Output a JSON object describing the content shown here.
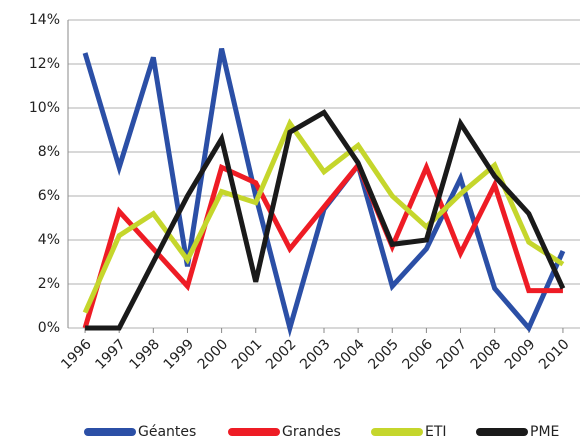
{
  "chart_data": {
    "type": "line",
    "categories": [
      "1996",
      "1997",
      "1998",
      "1999",
      "2000",
      "2001",
      "2002",
      "2003",
      "2004",
      "2005",
      "2006",
      "2007",
      "2008",
      "2009",
      "2010"
    ],
    "series": [
      {
        "name": "Géantes",
        "color": "#2b4fa6",
        "values": [
          12.5,
          7.3,
          12.3,
          2.8,
          12.7,
          6.0,
          0,
          5.4,
          7.4,
          1.9,
          3.6,
          6.8,
          1.8,
          0,
          3.5
        ]
      },
      {
        "name": "Grandes",
        "color": "#ee1c25",
        "values": [
          0,
          5.3,
          3.6,
          1.9,
          7.3,
          6.6,
          3.6,
          5.5,
          7.4,
          3.7,
          7.3,
          3.4,
          6.5,
          1.7,
          1.7
        ]
      },
      {
        "name": "ETI",
        "color": "#c5d62c",
        "values": [
          0.7,
          4.2,
          5.2,
          3.1,
          6.2,
          5.7,
          9.3,
          7.1,
          8.3,
          6.0,
          4.6,
          6.1,
          7.4,
          3.9,
          2.9
        ]
      },
      {
        "name": "PME",
        "color": "#1a1a1a",
        "values": [
          0,
          0,
          3.0,
          6.0,
          8.6,
          2.1,
          8.9,
          9.8,
          7.5,
          3.8,
          4.0,
          9.3,
          6.9,
          5.2,
          1.8
        ]
      }
    ],
    "ylim": [
      0,
      14
    ],
    "yticks": [
      {
        "value": 0,
        "label": "0%"
      },
      {
        "value": 2,
        "label": "2%"
      },
      {
        "value": 4,
        "label": "4%"
      },
      {
        "value": 6,
        "label": "6%"
      },
      {
        "value": 8,
        "label": "8%"
      },
      {
        "value": 10,
        "label": "10%"
      },
      {
        "value": 12,
        "label": "12%"
      },
      {
        "value": 14,
        "label": "14%"
      }
    ],
    "grid": true,
    "legend": "bottom"
  }
}
